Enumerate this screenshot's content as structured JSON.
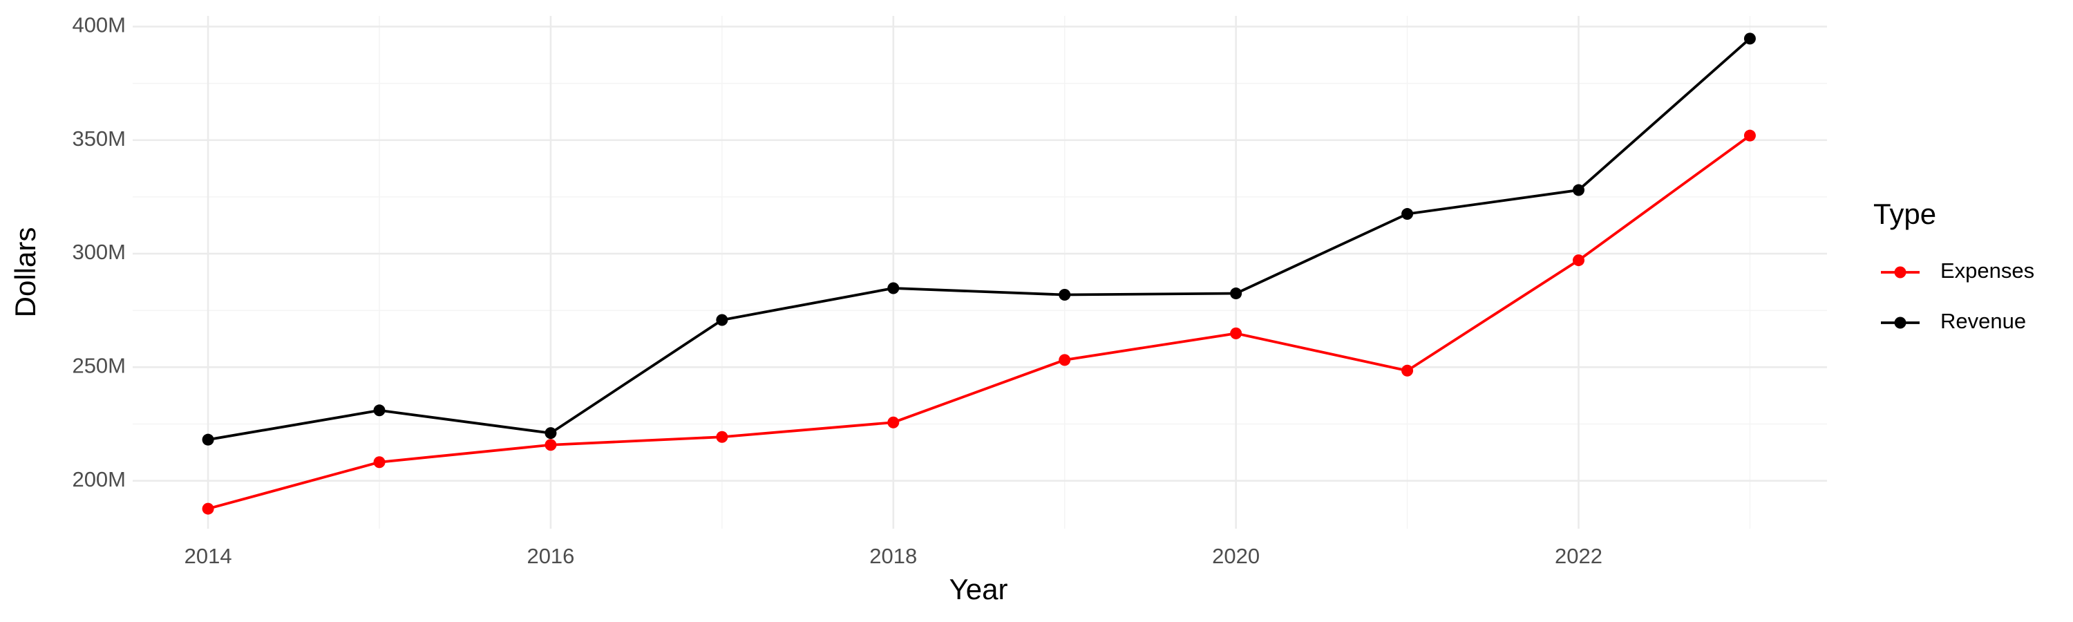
{
  "chart_data": {
    "type": "line",
    "x_label": "Year",
    "y_label": "Dollars",
    "legend_title": "Type",
    "x": [
      2014,
      2015,
      2016,
      2017,
      2018,
      2019,
      2020,
      2021,
      2022,
      2023
    ],
    "series": [
      {
        "name": "Expenses",
        "color": "#ff0000",
        "values": [
          187700000,
          208200000,
          215800000,
          219300000,
          225700000,
          253200000,
          264900000,
          248500000,
          297100000,
          352000000
        ]
      },
      {
        "name": "Revenue",
        "color": "#000000",
        "values": [
          218100000,
          231000000,
          221000000,
          270800000,
          284800000,
          281900000,
          282500000,
          317500000,
          328000000,
          394700000
        ]
      }
    ],
    "xlim": [
      2013.56,
      2023.45
    ],
    "xticks": [
      2014,
      2016,
      2018,
      2020,
      2022
    ],
    "ylim": [
      178900000,
      404700000
    ],
    "yticks": [
      {
        "value": 200000000,
        "label": "200M"
      },
      {
        "value": 250000000,
        "label": "250M"
      },
      {
        "value": 300000000,
        "label": "300M"
      },
      {
        "value": 350000000,
        "label": "350M"
      },
      {
        "value": 400000000,
        "label": "400M"
      }
    ],
    "grid": true,
    "legend": "right"
  }
}
